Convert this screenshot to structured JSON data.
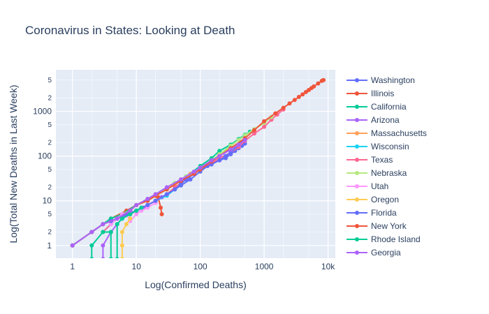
{
  "chart_data": {
    "type": "line",
    "title": "Coronavirus in States: Looking at Death",
    "xlabel": "Log(Confirmed Deaths)",
    "ylabel": "Log(Total New Deaths in Last Week)",
    "x_scale": "log",
    "y_scale": "log",
    "xlim": [
      0.55,
      13000
    ],
    "ylim": [
      0.52,
      8500
    ],
    "grid": true,
    "legend_position": "right",
    "x_ticks": [
      {
        "value": 1,
        "label": "1"
      },
      {
        "value": 10,
        "label": "10"
      },
      {
        "value": 100,
        "label": "100"
      },
      {
        "value": 1000,
        "label": "1000"
      },
      {
        "value": 10000,
        "label": "10k"
      }
    ],
    "y_ticks": [
      {
        "value": 1,
        "label": "1"
      },
      {
        "value": 10,
        "label": "10"
      },
      {
        "value": 100,
        "label": "100"
      },
      {
        "value": 1000,
        "label": "1000"
      }
    ],
    "y_minor_ticks": [
      {
        "value": 2,
        "label": "2"
      },
      {
        "value": 5,
        "label": "5"
      },
      {
        "value": 20,
        "label": "2"
      },
      {
        "value": 50,
        "label": "5"
      },
      {
        "value": 200,
        "label": "2"
      },
      {
        "value": 500,
        "label": "5"
      },
      {
        "value": 2000,
        "label": "2"
      },
      {
        "value": 5000,
        "label": "5"
      }
    ],
    "series": [
      {
        "name": "Washington",
        "color": "#636efa",
        "x": [
          1,
          2,
          3,
          5,
          8,
          10,
          12,
          15,
          20,
          25,
          30,
          40,
          50,
          70,
          100,
          130,
          150,
          200,
          250,
          300,
          350,
          400,
          450,
          500
        ],
        "y": [
          1,
          2,
          3,
          4,
          5,
          6,
          7,
          8,
          10,
          12,
          14,
          18,
          22,
          30,
          45,
          60,
          70,
          80,
          90,
          110,
          130,
          150,
          170,
          190
        ]
      },
      {
        "name": "Illinois",
        "color": "#EF553B",
        "x": [
          1,
          2,
          4,
          7,
          10,
          15,
          20,
          22,
          24,
          25
        ],
        "y": [
          1,
          2,
          4,
          6,
          8,
          11,
          14,
          12,
          7,
          5
        ]
      },
      {
        "name": "California",
        "color": "#00cc96",
        "x": [
          1,
          2,
          3,
          4,
          6,
          10,
          15,
          20,
          30,
          40,
          60,
          100,
          150,
          200,
          300,
          400,
          500,
          600
        ],
        "y": [
          1,
          2,
          3,
          4,
          5,
          8,
          10,
          13,
          18,
          25,
          35,
          60,
          90,
          130,
          180,
          240,
          300,
          350
        ]
      },
      {
        "name": "Arizona",
        "color": "#ab63fa",
        "x": [
          3,
          3,
          4,
          5,
          6,
          8,
          10,
          13,
          15,
          20,
          25,
          30
        ],
        "y": [
          0.5,
          1,
          2,
          3,
          4,
          5,
          6,
          7,
          8,
          10,
          12,
          14
        ]
      },
      {
        "name": "Massachusetts",
        "color": "#FFA15A",
        "x": [
          4,
          5,
          6,
          8,
          10,
          15,
          20,
          30,
          40,
          50,
          70,
          100,
          150,
          200,
          300
        ],
        "y": [
          3,
          4,
          5,
          6,
          8,
          10,
          13,
          18,
          24,
          30,
          40,
          55,
          80,
          110,
          160
        ]
      },
      {
        "name": "Wisconsin",
        "color": "#19d3f3",
        "x": [
          3,
          4,
          5,
          7,
          10,
          15,
          20,
          30,
          40,
          50,
          60,
          80,
          100
        ],
        "y": [
          2,
          3,
          4,
          5,
          6,
          8,
          10,
          13,
          18,
          24,
          30,
          40,
          50
        ]
      },
      {
        "name": "Texas",
        "color": "#FF6692",
        "x": [
          3,
          4,
          5,
          7,
          10,
          15,
          20,
          30,
          40,
          60,
          80,
          100,
          150,
          200,
          300,
          400,
          500,
          700,
          1000,
          1300,
          1600,
          2000
        ],
        "y": [
          2,
          3,
          4,
          5,
          6,
          8,
          10,
          14,
          20,
          30,
          40,
          50,
          70,
          90,
          120,
          160,
          220,
          320,
          450,
          650,
          850,
          1100
        ]
      },
      {
        "name": "Nebraska",
        "color": "#B6E880",
        "x": [
          5,
          6,
          8,
          10,
          15,
          20,
          30,
          40,
          60,
          80,
          100,
          150,
          200,
          300,
          400,
          500,
          700,
          1000,
          1300
        ],
        "y": [
          4,
          5,
          6,
          8,
          10,
          13,
          18,
          25,
          35,
          45,
          55,
          80,
          110,
          170,
          230,
          290,
          400,
          550,
          750
        ]
      },
      {
        "name": "Utah",
        "color": "#FF97FF",
        "x": [
          4,
          5,
          6,
          7,
          8,
          10,
          12,
          15,
          20
        ],
        "y": [
          3,
          4,
          5,
          5,
          3.5,
          5,
          6,
          7,
          9
        ]
      },
      {
        "name": "Oregon",
        "color": "#FECB52",
        "x": [
          6,
          6,
          6,
          7,
          8
        ],
        "y": [
          0.5,
          1,
          2,
          3,
          4
        ]
      },
      {
        "name": "Florida",
        "color": "#636efa",
        "x": [
          2,
          3,
          4,
          5,
          7,
          10,
          15,
          20,
          30,
          40,
          50,
          60,
          80,
          100,
          150,
          200,
          250,
          300,
          400,
          500
        ],
        "y": [
          2,
          3,
          3.5,
          4,
          5,
          6,
          8,
          10,
          14,
          18,
          24,
          30,
          40,
          50,
          65,
          80,
          100,
          120,
          180,
          250
        ]
      },
      {
        "name": "New York",
        "color": "#EF553B",
        "x": [
          1,
          2,
          3,
          5,
          8,
          10,
          15,
          20,
          30,
          50,
          80,
          100,
          150,
          200,
          300,
          500,
          700,
          1000,
          1500,
          2000,
          2500,
          3000,
          3500,
          4000,
          4500,
          5000,
          5500,
          6000,
          7000,
          8000,
          8500
        ],
        "y": [
          1,
          2,
          3,
          4,
          6,
          8,
          10,
          13,
          18,
          28,
          40,
          50,
          75,
          100,
          150,
          250,
          380,
          600,
          900,
          1200,
          1500,
          1800,
          2100,
          2400,
          2700,
          3000,
          3300,
          3600,
          4200,
          4800,
          5000
        ]
      },
      {
        "name": "Rhode Island",
        "color": "#00cc96",
        "x": [
          2,
          2,
          3,
          4,
          4,
          5,
          5,
          6,
          8,
          10,
          12
        ],
        "y": [
          0.5,
          1,
          2,
          2,
          0.5,
          0.5,
          3,
          4,
          5,
          6,
          7
        ]
      },
      {
        "name": "Georgia",
        "color": "#ab63fa",
        "x": [
          1,
          2,
          3,
          5,
          8,
          10,
          15,
          20,
          30,
          50,
          80,
          100,
          150,
          200,
          300,
          400,
          500
        ],
        "y": [
          1,
          2,
          3,
          4,
          6,
          8,
          11,
          14,
          20,
          30,
          45,
          55,
          80,
          100,
          140,
          180,
          230
        ]
      }
    ]
  }
}
